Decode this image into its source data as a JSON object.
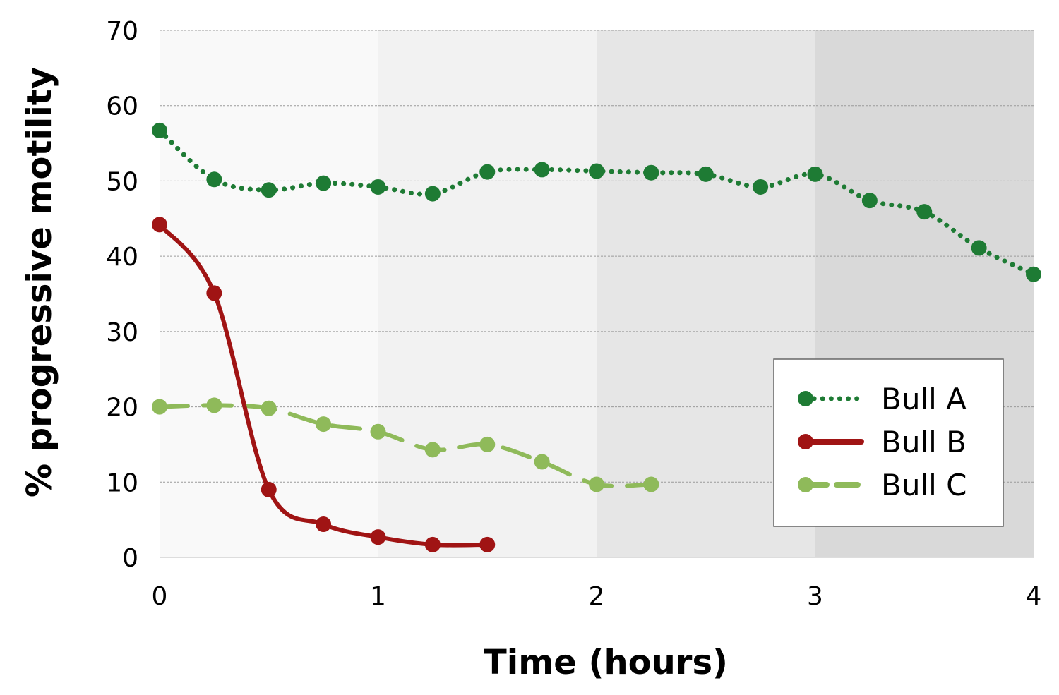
{
  "chart_data": {
    "type": "line",
    "title": "",
    "xlabel": "Time (hours)",
    "ylabel": "% progressive motility",
    "xlim": [
      0,
      4
    ],
    "ylim": [
      0,
      70
    ],
    "xticks": [
      "0",
      "1",
      "2",
      "3",
      "4"
    ],
    "yticks": [
      "0",
      "10",
      "20",
      "30",
      "40",
      "50",
      "60",
      "70"
    ],
    "grid": true,
    "legend_position": "bottom-right",
    "background_bands": [
      "#f9f9f9",
      "#f2f2f2",
      "#e6e6e6",
      "#d9d9d9"
    ],
    "series": [
      {
        "name": "Bull A",
        "color": "#1e7b34",
        "style": "dotted",
        "x": [
          0,
          0.25,
          0.5,
          0.75,
          1,
          1.25,
          1.5,
          1.75,
          2,
          2.25,
          2.5,
          2.75,
          3,
          3.25,
          3.5,
          3.75,
          4
        ],
        "y": [
          56.7,
          50.2,
          48.8,
          49.7,
          49.2,
          48.3,
          51.2,
          51.5,
          51.3,
          51.1,
          50.9,
          49.2,
          50.9,
          47.4,
          45.9,
          41.1,
          37.6
        ]
      },
      {
        "name": "Bull B",
        "color": "#a01414",
        "style": "solid",
        "x": [
          0,
          0.25,
          0.5,
          0.75,
          1,
          1.25,
          1.5
        ],
        "y": [
          44.2,
          35.1,
          9.0,
          4.4,
          2.7,
          1.7,
          1.7
        ]
      },
      {
        "name": "Bull C",
        "color": "#8fba5a",
        "style": "dashed",
        "x": [
          0,
          0.25,
          0.5,
          0.75,
          1,
          1.25,
          1.5,
          1.75,
          2,
          2.25
        ],
        "y": [
          20.0,
          20.2,
          19.8,
          17.7,
          16.7,
          14.3,
          15.0,
          12.7,
          9.7,
          9.7
        ]
      }
    ]
  }
}
